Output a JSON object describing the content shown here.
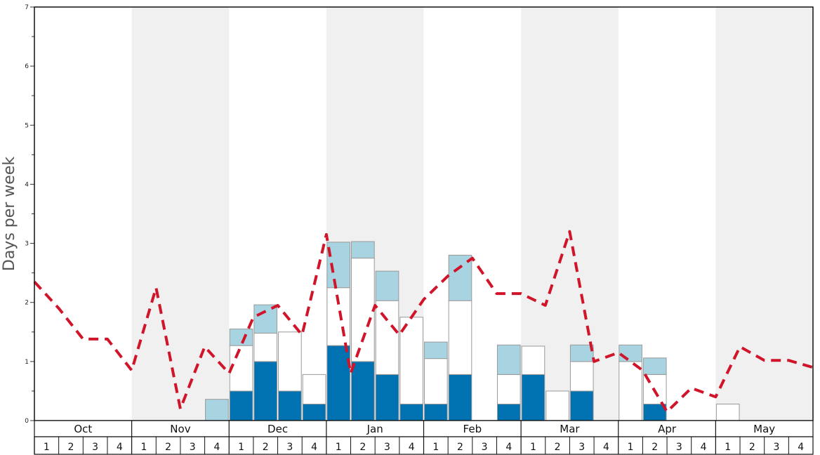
{
  "chart_data": {
    "type": "bar",
    "ylabel": "Days per week",
    "ylim": [
      0,
      7
    ],
    "yticks": [
      0,
      1,
      2,
      3,
      4,
      5,
      6,
      7
    ],
    "months": [
      "Oct",
      "Nov",
      "Dec",
      "Jan",
      "Feb",
      "Mar",
      "Apr",
      "May"
    ],
    "weeks_per_month": 4,
    "week_labels": [
      "1",
      "2",
      "3",
      "4"
    ],
    "alternate_shading": true,
    "colors": {
      "dark_blue": "#0072b2",
      "white": "#ffffff",
      "light_blue": "#a8d4e2",
      "line": "#d0142a",
      "shade": "#f0f0f0",
      "bar_border": "#999999"
    },
    "series": [
      {
        "color_key": "dark_blue",
        "values": [
          0,
          0,
          0,
          0,
          0,
          0,
          0,
          0,
          0.5,
          1.0,
          0.5,
          0.28,
          1.27,
          1.0,
          0.78,
          0.28,
          0.28,
          0.78,
          0,
          0.28,
          0.78,
          0,
          0.5,
          0,
          0,
          0.28,
          0,
          0,
          0,
          0,
          0,
          0
        ]
      },
      {
        "color_key": "white",
        "values": [
          0,
          0,
          0,
          0,
          0,
          0,
          0,
          0,
          0.77,
          0.48,
          1.0,
          0.5,
          0.98,
          1.75,
          1.25,
          1.47,
          0.77,
          1.25,
          0,
          0.5,
          0.48,
          0.5,
          0.5,
          0,
          1.0,
          0.5,
          0,
          0,
          0.28,
          0,
          0,
          0
        ]
      },
      {
        "color_key": "light_blue",
        "values": [
          0,
          0,
          0,
          0,
          0,
          0,
          0,
          0.36,
          0.28,
          0.48,
          0,
          0,
          0.77,
          0.28,
          0.5,
          0,
          0.28,
          0.77,
          0,
          0.5,
          0,
          0,
          0.28,
          0,
          0.28,
          0.28,
          0,
          0,
          0,
          0,
          0,
          0
        ]
      }
    ],
    "line_series": {
      "color_key": "line",
      "style": "dashed",
      "values": [
        2.35,
        1.9,
        1.38,
        1.38,
        0.85,
        2.25,
        0.2,
        1.25,
        0.8,
        1.75,
        1.95,
        1.45,
        3.15,
        0.8,
        1.95,
        1.45,
        2.05,
        2.45,
        2.75,
        2.15,
        2.15,
        1.95,
        3.2,
        1.0,
        1.15,
        0.85,
        0.15,
        0.55,
        0.4,
        1.25,
        1.02,
        1.02
      ]
    },
    "line_end_value": 0.9
  }
}
